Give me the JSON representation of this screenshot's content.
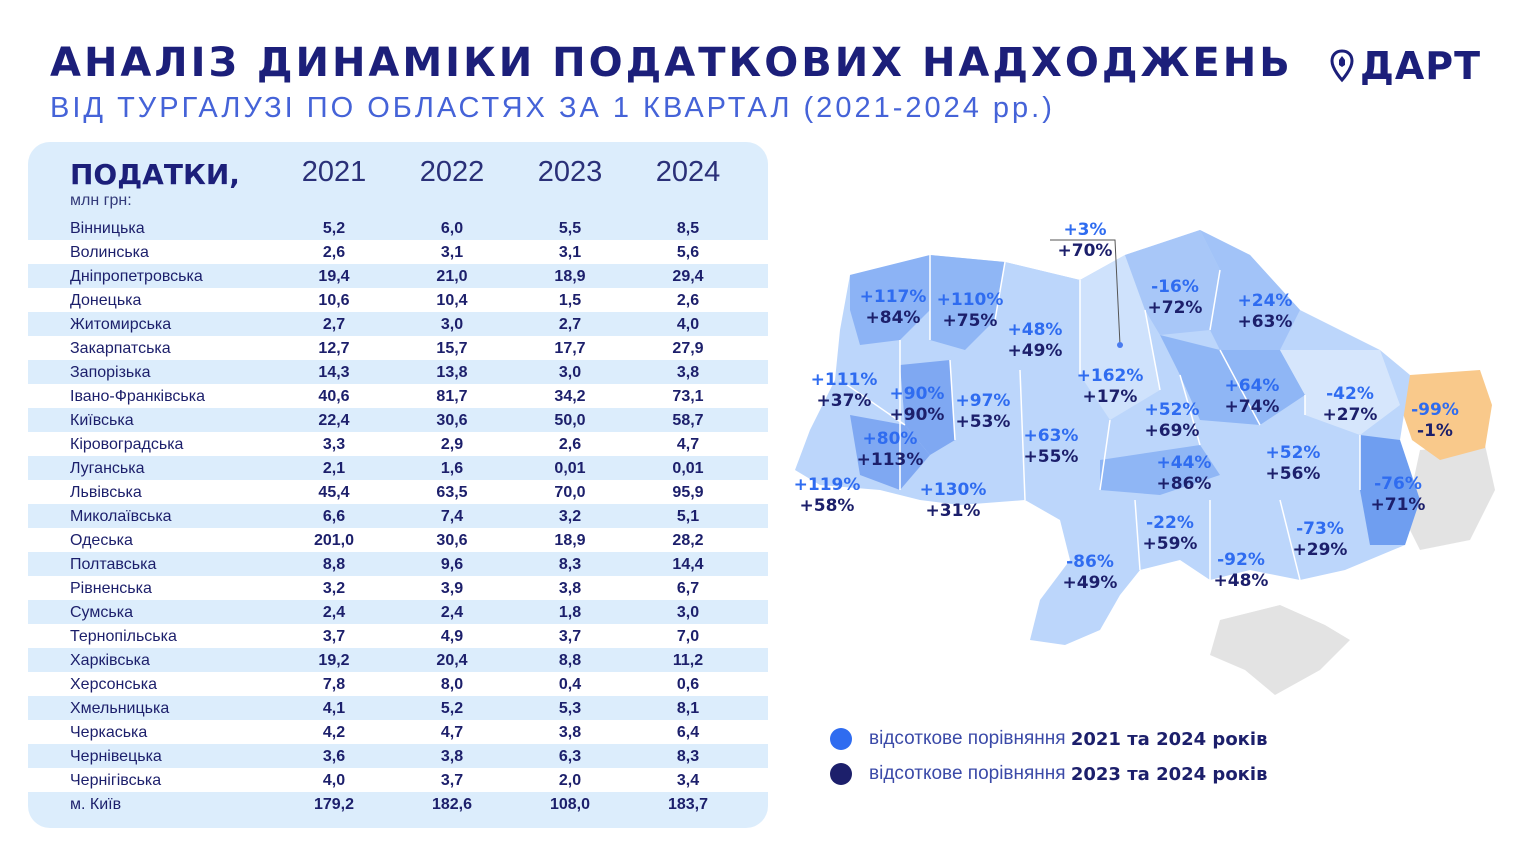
{
  "header": {
    "title": "АНАЛІЗ ДИНАМІКИ ПОДАТКОВИХ НАДХОДЖЕНЬ",
    "subtitle": "ВІД ТУРГАЛУЗІ ПО ОБЛАСТЯХ ЗА 1 КВАРТАЛ (2021-2024 рр.)",
    "logo_text": "ДАРТ"
  },
  "table": {
    "label": "ПОДАТКИ,",
    "unit": "млн грн:",
    "years": [
      "2021",
      "2022",
      "2023",
      "2024"
    ],
    "rows": [
      {
        "name": "Вінницька",
        "values": [
          "5,2",
          "6,0",
          "5,5",
          "8,5"
        ]
      },
      {
        "name": "Волинська",
        "values": [
          "2,6",
          "3,1",
          "3,1",
          "5,6"
        ]
      },
      {
        "name": "Дніпропетровська",
        "values": [
          "19,4",
          "21,0",
          "18,9",
          "29,4"
        ]
      },
      {
        "name": "Донецька",
        "values": [
          "10,6",
          "10,4",
          "1,5",
          "2,6"
        ]
      },
      {
        "name": "Житомирська",
        "values": [
          "2,7",
          "3,0",
          "2,7",
          "4,0"
        ]
      },
      {
        "name": "Закарпатська",
        "values": [
          "12,7",
          "15,7",
          "17,7",
          "27,9"
        ]
      },
      {
        "name": "Запорізька",
        "values": [
          "14,3",
          "13,8",
          "3,0",
          "3,8"
        ]
      },
      {
        "name": "Івано-Франківська",
        "values": [
          "40,6",
          "81,7",
          "34,2",
          "73,1"
        ]
      },
      {
        "name": "Київська",
        "values": [
          "22,4",
          "30,6",
          "50,0",
          "58,7"
        ]
      },
      {
        "name": "Кіровоградська",
        "values": [
          "3,3",
          "2,9",
          "2,6",
          "4,7"
        ]
      },
      {
        "name": "Луганська",
        "values": [
          "2,1",
          "1,6",
          "0,01",
          "0,01"
        ]
      },
      {
        "name": "Львівська",
        "values": [
          "45,4",
          "63,5",
          "70,0",
          "95,9"
        ]
      },
      {
        "name": "Миколаївська",
        "values": [
          "6,6",
          "7,4",
          "3,2",
          "5,1"
        ]
      },
      {
        "name": "Одеська",
        "values": [
          "201,0",
          "30,6",
          "18,9",
          "28,2"
        ]
      },
      {
        "name": "Полтавська",
        "values": [
          "8,8",
          "9,6",
          "8,3",
          "14,4"
        ]
      },
      {
        "name": "Рівненська",
        "values": [
          "3,2",
          "3,9",
          "3,8",
          "6,7"
        ]
      },
      {
        "name": "Сумська",
        "values": [
          "2,4",
          "2,4",
          "1,8",
          "3,0"
        ]
      },
      {
        "name": "Тернопільська",
        "values": [
          "3,7",
          "4,9",
          "3,7",
          "7,0"
        ]
      },
      {
        "name": "Харківська",
        "values": [
          "19,2",
          "20,4",
          "8,8",
          "11,2"
        ]
      },
      {
        "name": "Херсонська",
        "values": [
          "7,8",
          "8,0",
          "0,4",
          "0,6"
        ]
      },
      {
        "name": "Хмельницька",
        "values": [
          "4,1",
          "5,2",
          "5,3",
          "8,1"
        ]
      },
      {
        "name": "Черкаська",
        "values": [
          "4,2",
          "4,7",
          "3,8",
          "6,4"
        ]
      },
      {
        "name": "Чернівецька",
        "values": [
          "3,6",
          "3,8",
          "6,3",
          "8,3"
        ]
      },
      {
        "name": "Чернігівська",
        "values": [
          "4,0",
          "3,7",
          "2,0",
          "3,4"
        ]
      },
      {
        "name": "м. Київ",
        "values": [
          "179,2",
          "182,6",
          "108,0",
          "183,7"
        ]
      }
    ]
  },
  "map": {
    "labels": [
      {
        "region": "volyn",
        "a": "+117%",
        "b": "+84%"
      },
      {
        "region": "rivne",
        "a": "+110%",
        "b": "+75%"
      },
      {
        "region": "zhytomyr",
        "a": "+48%",
        "b": "+49%"
      },
      {
        "region": "kyiv-city",
        "a": "+3%",
        "b": "+70%"
      },
      {
        "region": "chernihiv",
        "a": "-16%",
        "b": "+72%"
      },
      {
        "region": "sumy",
        "a": "+24%",
        "b": "+63%"
      },
      {
        "region": "lviv",
        "a": "+111%",
        "b": "+37%"
      },
      {
        "region": "ternopil",
        "a": "+90%",
        "b": "+90%"
      },
      {
        "region": "khmelnytskyi",
        "a": "+97%",
        "b": "+53%"
      },
      {
        "region": "kyiv-oblast",
        "a": "+162%",
        "b": "+17%"
      },
      {
        "region": "poltava",
        "a": "+64%",
        "b": "+74%"
      },
      {
        "region": "kharkiv",
        "a": "-42%",
        "b": "+27%"
      },
      {
        "region": "luhansk",
        "a": "-99%",
        "b": "-1%"
      },
      {
        "region": "ivano-frankivsk",
        "a": "+80%",
        "b": "+113%"
      },
      {
        "region": "vinnytsia",
        "a": "+63%",
        "b": "+55%"
      },
      {
        "region": "cherkasy",
        "a": "+52%",
        "b": "+69%"
      },
      {
        "region": "kirovohrad",
        "a": "+44%",
        "b": "+86%"
      },
      {
        "region": "dnipro",
        "a": "+52%",
        "b": "+56%"
      },
      {
        "region": "donetsk",
        "a": "-76%",
        "b": "+71%"
      },
      {
        "region": "zakarpattia",
        "a": "+119%",
        "b": "+58%"
      },
      {
        "region": "chernivtsi",
        "a": "+130%",
        "b": "+31%"
      },
      {
        "region": "mykolaiv",
        "a": "-22%",
        "b": "+59%"
      },
      {
        "region": "zaporizhzhia",
        "a": "-73%",
        "b": "+29%"
      },
      {
        "region": "odesa",
        "a": "-86%",
        "b": "+49%"
      },
      {
        "region": "kherson",
        "a": "-92%",
        "b": "+48%"
      }
    ]
  },
  "legend": [
    {
      "text": "відсоткове порівняння ",
      "bold": "2021 та 2024 років",
      "color": "#2f6cf0"
    },
    {
      "text": "відсоткове порівняння ",
      "bold": "2023 та 2024 років",
      "color": "#1c1f6b"
    }
  ],
  "colors": {
    "accent": "#2f6cf0",
    "navy": "#1c1f6b",
    "row_highlight": "#dcedfc",
    "negative_region": "#f9c98b",
    "occupied": "#e3e3e3"
  }
}
